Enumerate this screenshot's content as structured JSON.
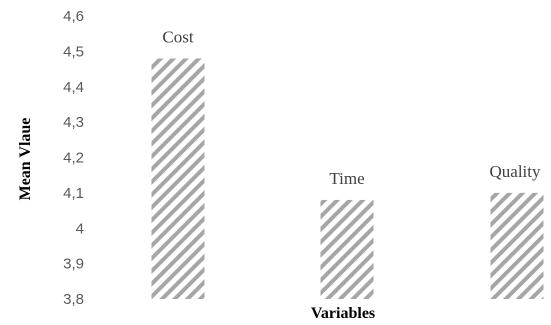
{
  "chart_data": {
    "type": "bar",
    "categories": [
      "Cost",
      "Time",
      "Quality"
    ],
    "values": [
      4.48,
      4.08,
      4.1
    ],
    "data_labels": [
      "Cost",
      "Time",
      "Quality"
    ],
    "xlabel": "Variables",
    "ylabel": "Mean Vlaue",
    "ylim": [
      3.8,
      4.6
    ],
    "yticks": [
      "3,8",
      "3,9",
      "4",
      "4,1",
      "4,2",
      "4,3",
      "4,4",
      "4,5",
      "4,6"
    ],
    "grid": false,
    "bar_fill": "diagonal-hatch",
    "bar_color": "#a6a6a6"
  }
}
